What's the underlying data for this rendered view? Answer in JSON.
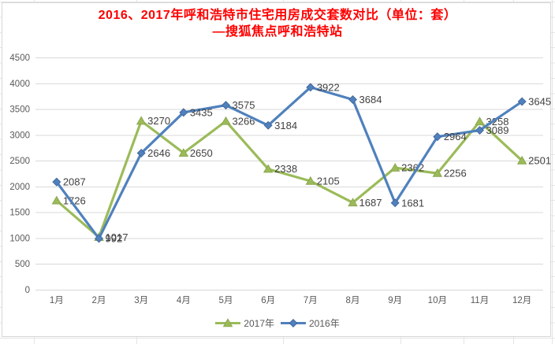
{
  "title": {
    "line1": "2016、2017年呼和浩特市住宅用房成交套数对比（单位：套）",
    "line2": "—搜狐焦点呼和浩特站",
    "color": "#FF0000"
  },
  "chart_data": {
    "type": "line",
    "categories": [
      "1月",
      "2月",
      "3月",
      "4月",
      "5月",
      "6月",
      "7月",
      "8月",
      "9月",
      "10月",
      "11月",
      "12月"
    ],
    "series": [
      {
        "name": "2017年",
        "color": "#9BBB59",
        "edge_color": "#8CA74F",
        "marker": "triangle",
        "values": [
          1726,
          1017,
          3270,
          2650,
          3266,
          2338,
          2105,
          1687,
          2362,
          2256,
          3258,
          2501
        ]
      },
      {
        "name": "2016年",
        "color": "#4F81BD",
        "edge_color": "#44699D",
        "marker": "diamond",
        "values": [
          2087,
          992,
          2646,
          3435,
          3575,
          3184,
          3922,
          3684,
          1681,
          2964,
          3089,
          3645
        ]
      }
    ],
    "ylim": [
      0,
      4500
    ],
    "yticks": [
      0,
      500,
      1000,
      1500,
      2000,
      2500,
      3000,
      3500,
      4000,
      4500
    ],
    "grid": "horizontal-only",
    "legend_position": "bottom-center",
    "show_data_labels": true,
    "gridline_color": "#D9D9D9",
    "axis_label_color": "#595959",
    "data_label_color": "#404040",
    "sheet_grid_color": "#E4E4E4"
  }
}
